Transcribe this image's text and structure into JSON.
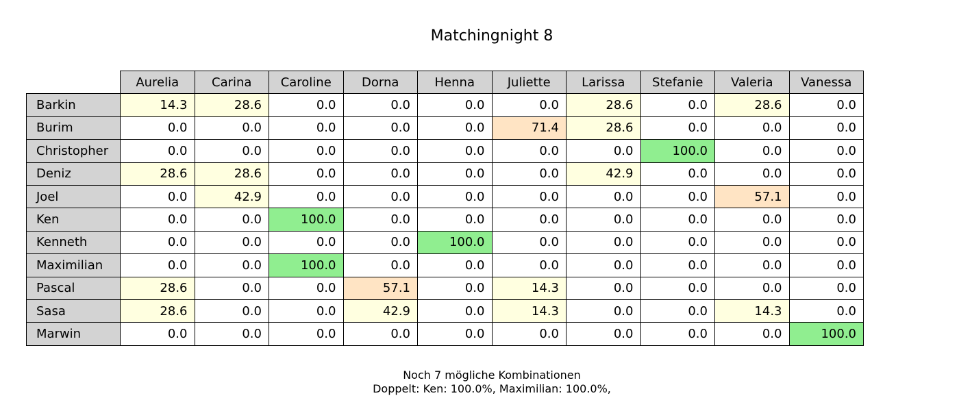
{
  "chart_data": {
    "type": "table",
    "title": "Matchingnight 8",
    "columns": [
      "Aurelia",
      "Carina",
      "Caroline",
      "Dorna",
      "Henna",
      "Juliette",
      "Larissa",
      "Stefanie",
      "Valeria",
      "Vanessa"
    ],
    "rows": [
      "Barkin",
      "Burim",
      "Christopher",
      "Deniz",
      "Joel",
      "Ken",
      "Kenneth",
      "Maximilian",
      "Pascal",
      "Sasa",
      "Marwin"
    ],
    "values": [
      [
        14.3,
        28.6,
        0.0,
        0.0,
        0.0,
        0.0,
        28.6,
        0.0,
        28.6,
        0.0
      ],
      [
        0.0,
        0.0,
        0.0,
        0.0,
        0.0,
        71.4,
        28.6,
        0.0,
        0.0,
        0.0
      ],
      [
        0.0,
        0.0,
        0.0,
        0.0,
        0.0,
        0.0,
        0.0,
        100.0,
        0.0,
        0.0
      ],
      [
        28.6,
        28.6,
        0.0,
        0.0,
        0.0,
        0.0,
        42.9,
        0.0,
        0.0,
        0.0
      ],
      [
        0.0,
        42.9,
        0.0,
        0.0,
        0.0,
        0.0,
        0.0,
        0.0,
        57.1,
        0.0
      ],
      [
        0.0,
        0.0,
        100.0,
        0.0,
        0.0,
        0.0,
        0.0,
        0.0,
        0.0,
        0.0
      ],
      [
        0.0,
        0.0,
        0.0,
        0.0,
        100.0,
        0.0,
        0.0,
        0.0,
        0.0,
        0.0
      ],
      [
        0.0,
        0.0,
        100.0,
        0.0,
        0.0,
        0.0,
        0.0,
        0.0,
        0.0,
        0.0
      ],
      [
        28.6,
        0.0,
        0.0,
        57.1,
        0.0,
        14.3,
        0.0,
        0.0,
        0.0,
        0.0
      ],
      [
        28.6,
        0.0,
        0.0,
        42.9,
        0.0,
        14.3,
        0.0,
        0.0,
        14.3,
        0.0
      ],
      [
        0.0,
        0.0,
        0.0,
        0.0,
        0.0,
        0.0,
        0.0,
        0.0,
        0.0,
        100.0
      ]
    ],
    "colors": {
      "header": "#d3d3d3",
      "certain": "#90ee90",
      "high": "#ffe4c4",
      "low": "#ffffe0",
      "zero": "#ffffff"
    }
  },
  "footer": {
    "line1": "Noch 7 mögliche Kombinationen",
    "line2": "Doppelt: Ken: 100.0%, Maximilian: 100.0%,"
  }
}
